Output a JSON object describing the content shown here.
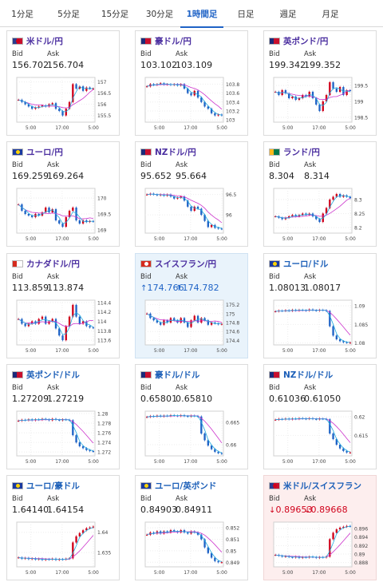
{
  "tabs": [
    {
      "label": "1分足",
      "active": false
    },
    {
      "label": "5分足",
      "active": false
    },
    {
      "label": "15分足",
      "active": false
    },
    {
      "label": "30分足",
      "active": false
    },
    {
      "label": "1時間足",
      "active": true
    },
    {
      "label": "日足",
      "active": false
    },
    {
      "label": "週足",
      "active": false
    },
    {
      "label": "月足",
      "active": false
    }
  ],
  "labels": {
    "bid": "Bid",
    "ask": "Ask"
  },
  "colors": {
    "accent": "#1f63c6",
    "up": "#1f63c6",
    "down": "#d0021b",
    "ma": "#cc33cc",
    "ma2": "#22aadd"
  },
  "cards": [
    {
      "pair": "米ドル/円",
      "bid": "156.702",
      "ask": "156.704",
      "flag": "us",
      "highlight": "",
      "chart_data": {
        "type": "candlestick",
        "xticks": [
          "5:00",
          "17:00",
          "5:00"
        ],
        "yticks": [
          "157",
          "156.5",
          "156",
          "155.5"
        ],
        "ylim": [
          155.2,
          157.2
        ],
        "close": [
          156.2,
          156.1,
          156.0,
          155.9,
          155.8,
          155.85,
          155.9,
          155.95,
          155.9,
          156.0,
          156.05,
          155.8,
          155.7,
          155.5,
          155.8,
          156.1,
          156.9,
          156.7,
          156.8,
          156.6,
          156.75,
          156.7,
          156.7
        ]
      }
    },
    {
      "pair": "豪ドル/円",
      "bid": "103.102",
      "ask": "103.109",
      "flag": "au",
      "highlight": "",
      "chart_data": {
        "type": "candlestick",
        "xticks": [
          "5:00",
          "17:00",
          "5:00"
        ],
        "yticks": [
          "103.8",
          "103.6",
          "103.4",
          "103.2",
          "103"
        ],
        "ylim": [
          102.95,
          103.95
        ],
        "close": [
          103.75,
          103.8,
          103.78,
          103.8,
          103.82,
          103.79,
          103.8,
          103.78,
          103.8,
          103.77,
          103.8,
          103.7,
          103.6,
          103.55,
          103.65,
          103.5,
          103.4,
          103.3,
          103.25,
          103.15,
          103.1,
          103.12,
          103.1
        ]
      }
    },
    {
      "pair": "英ポンド/円",
      "bid": "199.342",
      "ask": "199.352",
      "flag": "gb",
      "highlight": "",
      "chart_data": {
        "type": "candlestick",
        "xticks": [
          "5:00",
          "17:00",
          "5:00"
        ],
        "yticks": [
          "199.5",
          "199",
          "198.5"
        ],
        "ylim": [
          198.35,
          199.75
        ],
        "close": [
          199.3,
          199.2,
          199.35,
          199.25,
          199.1,
          199.15,
          199.05,
          199.1,
          199.2,
          199.15,
          199.3,
          199.1,
          198.9,
          198.7,
          199.0,
          199.2,
          199.6,
          199.4,
          199.3,
          199.45,
          199.2,
          199.35,
          199.34
        ]
      }
    },
    {
      "pair": "ユーロ/円",
      "bid": "169.259",
      "ask": "169.264",
      "flag": "eu",
      "highlight": "",
      "chart_data": {
        "type": "candlestick",
        "xticks": [
          "5:00",
          "17:00",
          "5:00"
        ],
        "yticks": [
          "170",
          "169.5",
          "169"
        ],
        "ylim": [
          168.9,
          170.3
        ],
        "close": [
          169.8,
          169.6,
          169.5,
          169.45,
          169.4,
          169.5,
          169.45,
          169.55,
          169.7,
          169.55,
          169.65,
          169.3,
          169.2,
          169.1,
          169.4,
          169.6,
          169.7,
          169.3,
          169.2,
          169.3,
          169.25,
          169.28,
          169.26
        ]
      }
    },
    {
      "pair": "NZドル/円",
      "bid": "95.652",
      "ask": "95.664",
      "flag": "nz",
      "highlight": "",
      "chart_data": {
        "type": "candlestick",
        "xticks": [
          "5:00",
          "17:00",
          "5:00"
        ],
        "yticks": [
          "96.5",
          "96"
        ],
        "ylim": [
          95.55,
          96.65
        ],
        "close": [
          96.5,
          96.52,
          96.5,
          96.48,
          96.5,
          96.47,
          96.5,
          96.45,
          96.4,
          96.42,
          96.45,
          96.35,
          96.2,
          96.1,
          96.2,
          96.15,
          96.0,
          95.85,
          95.7,
          95.75,
          95.68,
          95.66,
          95.65
        ]
      }
    },
    {
      "pair": "ランド/円",
      "bid": "8.304",
      "ask": "8.314",
      "flag": "za",
      "highlight": "",
      "chart_data": {
        "type": "candlestick",
        "xticks": [
          "5:00",
          "17:00",
          "5:00"
        ],
        "yticks": [
          "8.3",
          "8.25",
          "8.2"
        ],
        "ylim": [
          8.18,
          8.34
        ],
        "close": [
          8.24,
          8.235,
          8.23,
          8.235,
          8.24,
          8.245,
          8.24,
          8.245,
          8.25,
          8.245,
          8.25,
          8.24,
          8.23,
          8.22,
          8.25,
          8.27,
          8.3,
          8.31,
          8.32,
          8.31,
          8.315,
          8.31,
          8.305
        ]
      }
    },
    {
      "pair": "カナダドル/円",
      "bid": "113.859",
      "ask": "113.874",
      "flag": "ca",
      "highlight": "",
      "chart_data": {
        "type": "candlestick",
        "xticks": [
          "5:00",
          "17:00",
          "5:00"
        ],
        "yticks": [
          "114.4",
          "114.2",
          "114",
          "113.8",
          "113.6"
        ],
        "ylim": [
          113.5,
          114.45
        ],
        "close": [
          114.05,
          113.95,
          113.9,
          113.95,
          114.0,
          113.95,
          114.05,
          114.1,
          113.95,
          114.0,
          114.05,
          113.85,
          113.7,
          113.6,
          113.9,
          114.1,
          114.35,
          114.1,
          113.95,
          114.0,
          113.9,
          113.87,
          113.86
        ]
      }
    },
    {
      "pair": "スイスフラン/円",
      "bid": "174.766",
      "ask": "174.782",
      "flag": "ch",
      "highlight": "blue",
      "direction": "up",
      "chart_data": {
        "type": "candlestick",
        "xticks": [
          "5:00",
          "17:00",
          "5:00"
        ],
        "yticks": [
          "175.2",
          "175",
          "174.8",
          "174.6",
          "174.4"
        ],
        "ylim": [
          174.3,
          175.3
        ],
        "close": [
          175.0,
          174.9,
          174.85,
          174.8,
          174.75,
          174.85,
          174.8,
          174.9,
          174.85,
          174.8,
          174.9,
          174.8,
          174.7,
          174.85,
          174.95,
          174.8,
          174.9,
          174.85,
          174.75,
          174.8,
          174.78,
          174.76,
          174.77
        ]
      }
    },
    {
      "pair": "ユーロ/ドル",
      "bid": "1.08013",
      "ask": "1.08017",
      "flag": "eu",
      "highlight": "",
      "chart_data": {
        "type": "candlestick",
        "xticks": [
          "5:00",
          "17:00",
          "5:00"
        ],
        "yticks": [
          "1.09",
          "1.085",
          "1.08"
        ],
        "ylim": [
          1.0795,
          1.0915
        ],
        "close": [
          1.0885,
          1.0887,
          1.0886,
          1.0888,
          1.0886,
          1.0889,
          1.0887,
          1.0889,
          1.0888,
          1.0887,
          1.089,
          1.0888,
          1.0887,
          1.0889,
          1.0888,
          1.0886,
          1.0845,
          1.082,
          1.081,
          1.0805,
          1.0802,
          1.0801,
          1.0801
        ]
      }
    },
    {
      "pair": "英ポンド/ドル",
      "bid": "1.27209",
      "ask": "1.27219",
      "flag": "gb",
      "highlight": "",
      "chart_data": {
        "type": "candlestick",
        "xticks": [
          "5:00",
          "17:00",
          "5:00"
        ],
        "yticks": [
          "1.28",
          "1.278",
          "1.276",
          "1.274",
          "1.272"
        ],
        "ylim": [
          1.2712,
          1.2805
        ],
        "close": [
          1.2785,
          1.2787,
          1.2786,
          1.2788,
          1.2786,
          1.2788,
          1.2787,
          1.2789,
          1.2788,
          1.2786,
          1.2789,
          1.2787,
          1.2786,
          1.2788,
          1.2787,
          1.2786,
          1.2755,
          1.274,
          1.2732,
          1.2728,
          1.2724,
          1.2722,
          1.2721
        ]
      }
    },
    {
      "pair": "豪ドル/ドル",
      "bid": "0.65801",
      "ask": "0.65810",
      "flag": "au",
      "highlight": "",
      "chart_data": {
        "type": "candlestick",
        "xticks": [
          "5:00",
          "17:00",
          "5:00"
        ],
        "yticks": [
          "0.665",
          "0.66"
        ],
        "ylim": [
          0.6575,
          0.6675
        ],
        "close": [
          0.6662,
          0.6664,
          0.6663,
          0.6665,
          0.6663,
          0.6665,
          0.6664,
          0.6666,
          0.6665,
          0.6664,
          0.6666,
          0.6664,
          0.6663,
          0.6665,
          0.6664,
          0.6663,
          0.6625,
          0.661,
          0.6598,
          0.659,
          0.6584,
          0.6581,
          0.658
        ]
      }
    },
    {
      "pair": "NZドル/ドル",
      "bid": "0.61036",
      "ask": "0.61050",
      "flag": "nz",
      "highlight": "",
      "chart_data": {
        "type": "candlestick",
        "xticks": [
          "5:00",
          "17:00",
          "5:00"
        ],
        "yticks": [
          "0.62",
          "0.615"
        ],
        "ylim": [
          0.6095,
          0.6215
        ],
        "close": [
          0.6192,
          0.6194,
          0.6193,
          0.6195,
          0.6193,
          0.6195,
          0.6194,
          0.6196,
          0.6195,
          0.6194,
          0.6196,
          0.6194,
          0.6193,
          0.6195,
          0.6194,
          0.6193,
          0.6155,
          0.614,
          0.6125,
          0.6115,
          0.6108,
          0.6104,
          0.6104
        ]
      }
    },
    {
      "pair": "ユーロ/豪ドル",
      "bid": "1.64140",
      "ask": "1.64154",
      "flag": "eu",
      "highlight": "",
      "chart_data": {
        "type": "candlestick",
        "xticks": [
          "5:00",
          "17:00",
          "5:00"
        ],
        "yticks": [
          "1.64",
          "1.635"
        ],
        "ylim": [
          1.6315,
          1.6425
        ],
        "close": [
          1.6338,
          1.6335,
          1.6337,
          1.6334,
          1.6336,
          1.6333,
          1.6335,
          1.6332,
          1.6334,
          1.6333,
          1.6335,
          1.6332,
          1.6334,
          1.6333,
          1.6335,
          1.6336,
          1.6375,
          1.639,
          1.6398,
          1.6405,
          1.641,
          1.6412,
          1.6414
        ]
      }
    },
    {
      "pair": "ユーロ/英ポンド",
      "bid": "0.84903",
      "ask": "0.84911",
      "flag": "eu",
      "highlight": "",
      "chart_data": {
        "type": "candlestick",
        "xticks": [
          "5:00",
          "17:00",
          "5:00"
        ],
        "yticks": [
          "0.852",
          "0.851",
          "0.85",
          "0.849"
        ],
        "ylim": [
          0.8486,
          0.8525
        ],
        "close": [
          0.8514,
          0.8516,
          0.8515,
          0.8517,
          0.8515,
          0.8517,
          0.8516,
          0.8518,
          0.8517,
          0.8516,
          0.8518,
          0.8516,
          0.8515,
          0.8517,
          0.8516,
          0.8514,
          0.851,
          0.8503,
          0.8498,
          0.8494,
          0.8491,
          0.849,
          0.849
        ]
      }
    },
    {
      "pair": "米ドル/スイスフラン",
      "bid": "0.89653",
      "ask": "0.89668",
      "flag": "us",
      "highlight": "red",
      "direction": "down",
      "chart_data": {
        "type": "candlestick",
        "xticks": [
          "5:00",
          "17:00",
          "5:00"
        ],
        "yticks": [
          "0.896",
          "0.894",
          "0.892",
          "0.89",
          "0.888"
        ],
        "ylim": [
          0.887,
          0.8975
        ],
        "close": [
          0.8898,
          0.8896,
          0.8894,
          0.8895,
          0.8893,
          0.8892,
          0.8894,
          0.8891,
          0.8893,
          0.8892,
          0.8894,
          0.8893,
          0.8891,
          0.8893,
          0.8892,
          0.8894,
          0.8935,
          0.895,
          0.8958,
          0.8962,
          0.8964,
          0.8966,
          0.8965
        ]
      }
    }
  ]
}
